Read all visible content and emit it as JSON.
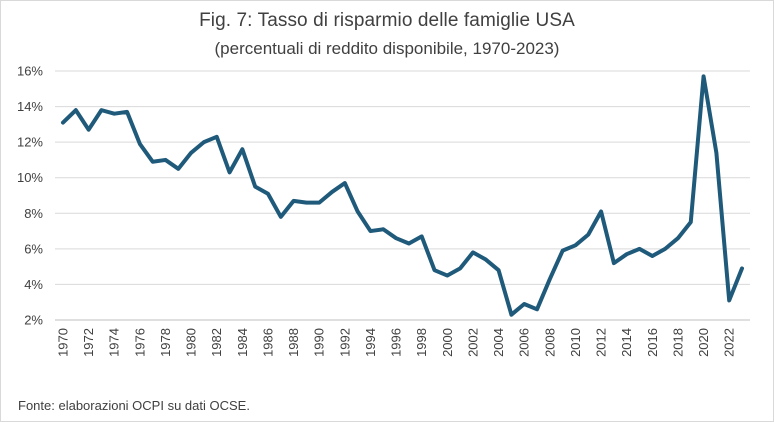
{
  "chart_data": {
    "type": "line",
    "title": "Fig. 7: Tasso di risparmio delle famiglie USA",
    "subtitle": "(percentuali di reddito disponibile, 1970-2023)",
    "source": "Fonte: elaborazioni OCPI su dati OCSE.",
    "xlabel": "",
    "ylabel": "",
    "ylim": [
      2,
      16
    ],
    "y_ticks": [
      "2%",
      "4%",
      "6%",
      "8%",
      "10%",
      "12%",
      "14%",
      "16%"
    ],
    "x_ticks": [
      "1970",
      "1972",
      "1974",
      "1976",
      "1978",
      "1980",
      "1982",
      "1984",
      "1986",
      "1988",
      "1990",
      "1992",
      "1994",
      "1996",
      "1998",
      "2000",
      "2002",
      "2004",
      "2006",
      "2008",
      "2010",
      "2012",
      "2014",
      "2016",
      "2018",
      "2020",
      "2022"
    ],
    "grid": "horizontal",
    "line_color": "#1f5a7a",
    "x": [
      1970,
      1971,
      1972,
      1973,
      1974,
      1975,
      1976,
      1977,
      1978,
      1979,
      1980,
      1981,
      1982,
      1983,
      1984,
      1985,
      1986,
      1987,
      1988,
      1989,
      1990,
      1991,
      1992,
      1993,
      1994,
      1995,
      1996,
      1997,
      1998,
      1999,
      2000,
      2001,
      2002,
      2003,
      2004,
      2005,
      2006,
      2007,
      2008,
      2009,
      2010,
      2011,
      2012,
      2013,
      2014,
      2015,
      2016,
      2017,
      2018,
      2019,
      2020,
      2021,
      2022,
      2023
    ],
    "values": [
      13.1,
      13.8,
      12.7,
      13.8,
      13.6,
      13.7,
      11.9,
      10.9,
      11.0,
      10.5,
      11.4,
      12.0,
      12.3,
      10.3,
      11.6,
      9.5,
      9.1,
      7.8,
      8.7,
      8.6,
      8.6,
      9.2,
      9.7,
      8.1,
      7.0,
      7.1,
      6.6,
      6.3,
      6.7,
      4.8,
      4.5,
      4.9,
      5.8,
      5.4,
      4.8,
      2.3,
      2.9,
      2.6,
      4.3,
      5.9,
      6.2,
      6.8,
      8.1,
      5.2,
      5.7,
      6.0,
      5.6,
      6.0,
      6.6,
      7.5,
      15.7,
      11.4,
      3.1,
      4.9
    ]
  }
}
